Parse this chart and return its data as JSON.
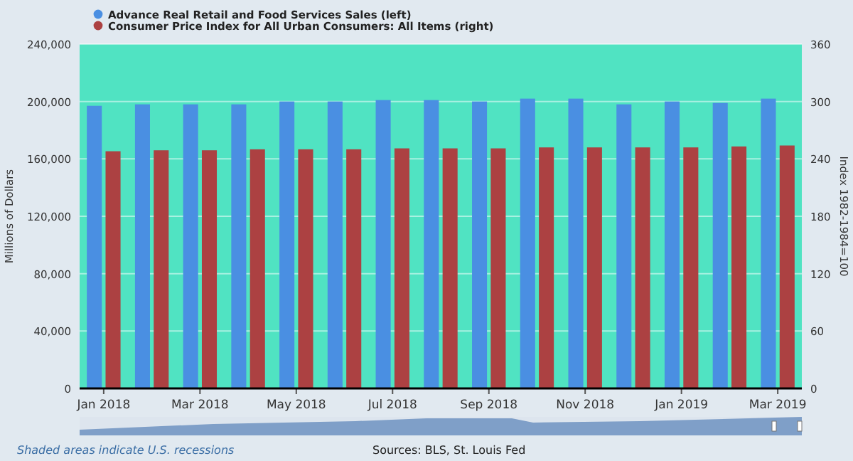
{
  "chart_data": {
    "type": "bar",
    "categories": [
      "Jan 2018",
      null,
      "Mar 2018",
      null,
      "May 2018",
      null,
      "Jul 2018",
      null,
      "Sep 2018",
      null,
      "Nov 2018",
      null,
      "Jan 2019",
      null,
      "Mar 2019"
    ],
    "series": [
      {
        "name": "Advance Real Retail and Food Services Sales (left)",
        "color": "#4a8fe2",
        "values": [
          197000,
          198000,
          198000,
          198000,
          200000,
          200000,
          201000,
          201000,
          200000,
          202000,
          202000,
          198000,
          200000,
          199000,
          202000
        ]
      },
      {
        "name": "Consumer Price Index for All Urban Consumers: All Items (right)",
        "color": "#ac4142",
        "axis": "y2",
        "values": [
          248,
          249,
          249,
          250,
          250,
          250,
          251,
          251,
          251,
          252,
          252,
          252,
          252,
          253,
          254
        ]
      }
    ],
    "ylabel": "Millions of Dollars",
    "y2label": "Index 1982-1984=100",
    "ylim": [
      0,
      240000
    ],
    "yticks": [
      {
        "value": 0,
        "label": "0"
      },
      {
        "value": 40000,
        "label": "40,000"
      },
      {
        "value": 80000,
        "label": "80,000"
      },
      {
        "value": 120000,
        "label": "120,000"
      },
      {
        "value": 160000,
        "label": "160,000"
      },
      {
        "value": 200000,
        "label": "200,000"
      },
      {
        "value": 240000,
        "label": "240,000"
      }
    ],
    "y2lim": [
      0,
      360
    ],
    "y2ticks": [
      0,
      60,
      120,
      180,
      240,
      300,
      360
    ],
    "grid": "y",
    "legend": "top left",
    "annotations": [
      "Shaded areas indicate U.S. recessions",
      "Sources: BLS, St. Louis Fed"
    ]
  }
}
